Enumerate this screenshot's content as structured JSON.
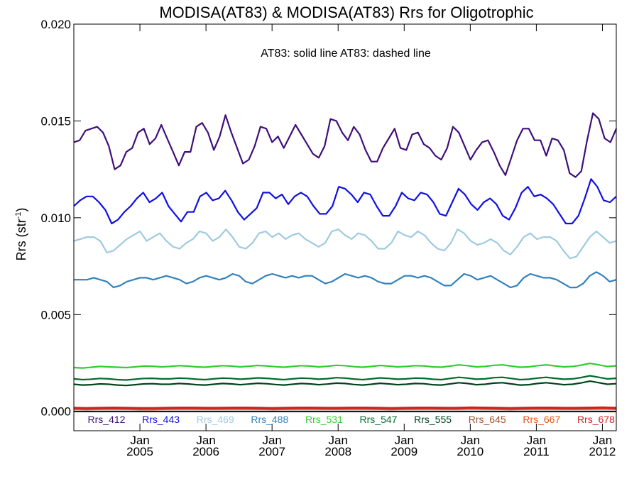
{
  "chart_data": {
    "type": "line",
    "title": "MODISA(AT83) & MODISA(AT83)  Rrs for Oligotrophic",
    "annotation": "AT83: solid line   AT83: dashed line",
    "ylabel_main": "Rrs (str",
    "ylabel_sup": "-1",
    "ylabel_close": ")",
    "xlabel": "",
    "ylim": [
      -0.001,
      0.02
    ],
    "xlim": [
      2004.0,
      2012.21
    ],
    "y_ticks": [
      0.0,
      0.005,
      0.01,
      0.015,
      0.02
    ],
    "y_tick_labels": [
      "0.000",
      "0.005",
      "0.010",
      "0.015",
      "0.020"
    ],
    "x_ticks": [
      2005.0,
      2006.0,
      2007.0,
      2008.0,
      2009.0,
      2010.0,
      2011.0,
      2012.0
    ],
    "x_tick_labels_top": [
      "Jan",
      "Jan",
      "Jan",
      "Jan",
      "Jan",
      "Jan",
      "Jan",
      "Jan"
    ],
    "x_tick_labels_bottom": [
      "2005",
      "2006",
      "2007",
      "2008",
      "2009",
      "2010",
      "2011",
      "2012"
    ],
    "grid": false,
    "legend_placement": "bottom",
    "series": [
      {
        "name": "Rrs_412",
        "color": "#3f0f7a",
        "values": [
          0.0139,
          0.014,
          0.0145,
          0.0146,
          0.0147,
          0.0144,
          0.0137,
          0.0125,
          0.0127,
          0.0134,
          0.0136,
          0.0144,
          0.0146,
          0.0138,
          0.0141,
          0.0148,
          0.0141,
          0.0134,
          0.0127,
          0.0134,
          0.0134,
          0.0147,
          0.0149,
          0.0144,
          0.0135,
          0.0142,
          0.0153,
          0.0144,
          0.0136,
          0.0128,
          0.013,
          0.0137,
          0.0147,
          0.0146,
          0.0139,
          0.0142,
          0.0136,
          0.0142,
          0.0148,
          0.0143,
          0.0138,
          0.0133,
          0.0131,
          0.0137,
          0.0151,
          0.015,
          0.0144,
          0.014,
          0.0147,
          0.0143,
          0.0135,
          0.0129,
          0.0129,
          0.0136,
          0.0141,
          0.0146,
          0.0136,
          0.0135,
          0.0143,
          0.0144,
          0.0138,
          0.0136,
          0.0132,
          0.013,
          0.0136,
          0.0147,
          0.0144,
          0.0137,
          0.013,
          0.0135,
          0.0139,
          0.014,
          0.0134,
          0.0127,
          0.0122,
          0.0131,
          0.014,
          0.0146,
          0.0146,
          0.014,
          0.014,
          0.0132,
          0.0141,
          0.014,
          0.0135,
          0.0123,
          0.0121,
          0.0124,
          0.014,
          0.0154,
          0.0151,
          0.0141,
          0.0139,
          0.0146
        ]
      },
      {
        "name": "Rrs_443",
        "color": "#1010e6",
        "values": [
          0.0106,
          0.0109,
          0.0111,
          0.0111,
          0.0108,
          0.0104,
          0.0097,
          0.0099,
          0.0103,
          0.0106,
          0.011,
          0.0113,
          0.0108,
          0.011,
          0.0113,
          0.0106,
          0.0102,
          0.0098,
          0.0103,
          0.0103,
          0.0111,
          0.0113,
          0.0109,
          0.011,
          0.0114,
          0.0109,
          0.0103,
          0.0099,
          0.0102,
          0.0105,
          0.0113,
          0.0113,
          0.011,
          0.0112,
          0.0107,
          0.0111,
          0.0113,
          0.0111,
          0.0106,
          0.0102,
          0.0102,
          0.0106,
          0.0116,
          0.0115,
          0.0112,
          0.0108,
          0.0113,
          0.0112,
          0.0106,
          0.0101,
          0.0101,
          0.0106,
          0.0113,
          0.011,
          0.0109,
          0.0113,
          0.0112,
          0.0108,
          0.0102,
          0.0101,
          0.0108,
          0.0115,
          0.0112,
          0.0107,
          0.0104,
          0.0108,
          0.011,
          0.0107,
          0.0101,
          0.0099,
          0.0105,
          0.0113,
          0.0116,
          0.0111,
          0.0112,
          0.011,
          0.0107,
          0.0102,
          0.0097,
          0.0097,
          0.0101,
          0.011,
          0.012,
          0.0116,
          0.0109,
          0.0108,
          0.0111
        ]
      },
      {
        "name": "Rrs_469",
        "color": "#9ecae1",
        "values": [
          0.0088,
          0.0089,
          0.009,
          0.009,
          0.0088,
          0.0082,
          0.0083,
          0.0086,
          0.0089,
          0.0091,
          0.0093,
          0.0088,
          0.009,
          0.0092,
          0.0088,
          0.0085,
          0.0084,
          0.0087,
          0.0089,
          0.0093,
          0.0092,
          0.0088,
          0.009,
          0.0094,
          0.009,
          0.0085,
          0.0084,
          0.0087,
          0.0092,
          0.0093,
          0.009,
          0.0092,
          0.0089,
          0.0091,
          0.0092,
          0.0089,
          0.0087,
          0.0085,
          0.0087,
          0.0093,
          0.0094,
          0.0091,
          0.0089,
          0.0092,
          0.0091,
          0.0088,
          0.0084,
          0.0084,
          0.0087,
          0.0093,
          0.0091,
          0.009,
          0.0093,
          0.0091,
          0.0087,
          0.0084,
          0.0083,
          0.0087,
          0.0094,
          0.0092,
          0.0088,
          0.0086,
          0.0087,
          0.0089,
          0.0087,
          0.0083,
          0.0081,
          0.0085,
          0.009,
          0.0092,
          0.0089,
          0.009,
          0.009,
          0.0088,
          0.0083,
          0.0079,
          0.008,
          0.0085,
          0.009,
          0.0093,
          0.009,
          0.0087,
          0.0088
        ]
      },
      {
        "name": "Rrs_488",
        "color": "#3182bd",
        "values": [
          0.0068,
          0.0068,
          0.0068,
          0.0069,
          0.0068,
          0.0067,
          0.0064,
          0.0065,
          0.0067,
          0.0068,
          0.0069,
          0.0069,
          0.0068,
          0.0069,
          0.007,
          0.0069,
          0.0068,
          0.0066,
          0.0067,
          0.0069,
          0.007,
          0.0069,
          0.0068,
          0.0069,
          0.0071,
          0.007,
          0.0067,
          0.0066,
          0.0068,
          0.007,
          0.0071,
          0.007,
          0.0069,
          0.007,
          0.0069,
          0.007,
          0.007,
          0.0068,
          0.0066,
          0.0067,
          0.0069,
          0.0071,
          0.007,
          0.0069,
          0.007,
          0.0069,
          0.0067,
          0.0066,
          0.0066,
          0.0068,
          0.007,
          0.007,
          0.0069,
          0.007,
          0.0069,
          0.0067,
          0.0065,
          0.0065,
          0.0068,
          0.0071,
          0.007,
          0.0068,
          0.0069,
          0.007,
          0.0068,
          0.0066,
          0.0064,
          0.0065,
          0.0069,
          0.0071,
          0.007,
          0.0069,
          0.0069,
          0.0068,
          0.0066,
          0.0064,
          0.0064,
          0.0066,
          0.007,
          0.0072,
          0.007,
          0.0067,
          0.0068
        ]
      },
      {
        "name": "Rrs_531",
        "color": "#33cc33",
        "values": [
          0.00226,
          0.00224,
          0.00228,
          0.00232,
          0.0023,
          0.00228,
          0.00226,
          0.0023,
          0.00234,
          0.00233,
          0.0023,
          0.00232,
          0.00236,
          0.00234,
          0.0023,
          0.00228,
          0.00232,
          0.00236,
          0.00234,
          0.0023,
          0.00233,
          0.00237,
          0.00235,
          0.00231,
          0.00228,
          0.00232,
          0.00236,
          0.00234,
          0.0023,
          0.00233,
          0.00238,
          0.00236,
          0.00231,
          0.00228,
          0.00232,
          0.00237,
          0.00234,
          0.0023,
          0.00232,
          0.00236,
          0.00235,
          0.0023,
          0.00228,
          0.00234,
          0.0024,
          0.00236,
          0.0023,
          0.00232,
          0.00238,
          0.0024,
          0.00234,
          0.00228,
          0.0023,
          0.00236,
          0.0024,
          0.00235,
          0.0023,
          0.00232,
          0.00239,
          0.00248,
          0.0024,
          0.00232,
          0.00235
        ]
      },
      {
        "name": "Rrs_547",
        "color": "#006d2c",
        "values": [
          0.00168,
          0.00164,
          0.00166,
          0.0017,
          0.00168,
          0.00164,
          0.00162,
          0.00166,
          0.0017,
          0.00171,
          0.00168,
          0.00168,
          0.00172,
          0.0017,
          0.00166,
          0.00164,
          0.00168,
          0.00172,
          0.0017,
          0.00166,
          0.00169,
          0.00173,
          0.00171,
          0.00167,
          0.00164,
          0.00168,
          0.00172,
          0.0017,
          0.00166,
          0.00169,
          0.00174,
          0.00172,
          0.00167,
          0.00164,
          0.00168,
          0.00173,
          0.0017,
          0.00166,
          0.00168,
          0.00172,
          0.00171,
          0.00166,
          0.00164,
          0.0017,
          0.00176,
          0.00172,
          0.00166,
          0.00168,
          0.00174,
          0.00176,
          0.0017,
          0.00164,
          0.00166,
          0.00172,
          0.00176,
          0.00171,
          0.00166,
          0.00168,
          0.00175,
          0.00184,
          0.00176,
          0.00168,
          0.00171
        ]
      },
      {
        "name": "Rrs_555",
        "color": "#00441b",
        "values": [
          0.0014,
          0.00136,
          0.00138,
          0.00142,
          0.0014,
          0.00136,
          0.00134,
          0.00138,
          0.00142,
          0.00143,
          0.0014,
          0.0014,
          0.00144,
          0.00142,
          0.00138,
          0.00136,
          0.0014,
          0.00144,
          0.00142,
          0.00138,
          0.00141,
          0.00145,
          0.00143,
          0.00139,
          0.00136,
          0.0014,
          0.00144,
          0.00142,
          0.00138,
          0.00141,
          0.00146,
          0.00144,
          0.00139,
          0.00136,
          0.0014,
          0.00145,
          0.00142,
          0.00138,
          0.0014,
          0.00144,
          0.00143,
          0.00138,
          0.00136,
          0.00142,
          0.00148,
          0.00144,
          0.00138,
          0.0014,
          0.00146,
          0.00148,
          0.00142,
          0.00136,
          0.00138,
          0.00144,
          0.00148,
          0.00143,
          0.00138,
          0.0014,
          0.00147,
          0.00156,
          0.00148,
          0.0014,
          0.00143
        ]
      },
      {
        "name": "Rrs_645",
        "color": "#a0522d",
        "values": [
          0.00016,
          0.00015,
          0.00016,
          0.00017,
          0.00016,
          0.00015,
          0.00015,
          0.00016,
          0.00017,
          0.00017,
          0.00016,
          0.00016,
          0.00017,
          0.00017,
          0.00016,
          0.00015,
          0.00016,
          0.00017,
          0.00017,
          0.00016,
          0.00016,
          0.00017,
          0.00017,
          0.00016,
          0.00015,
          0.00016,
          0.00017,
          0.00017,
          0.00016,
          0.00016,
          0.00018,
          0.00017,
          0.00016,
          0.00015,
          0.00016,
          0.00017,
          0.00017,
          0.00016,
          0.00016,
          0.00017,
          0.00018,
          0.00016
        ]
      },
      {
        "name": "Rrs_667",
        "color": "#e6550d",
        "values": [
          0.00012,
          0.00011,
          0.00012,
          0.00013,
          0.00012,
          0.00011,
          0.00011,
          0.00012,
          0.00013,
          0.00013,
          0.00012,
          0.00012,
          0.00013,
          0.00013,
          0.00012,
          0.00011,
          0.00012,
          0.00013,
          0.00013,
          0.00012,
          0.00012,
          0.00013,
          0.00013,
          0.00012,
          0.00011,
          0.00012,
          0.00013,
          0.00013,
          0.00012,
          0.00012,
          0.00014,
          0.00013,
          0.00012,
          0.00011,
          0.00012,
          0.00013,
          0.00013,
          0.00012,
          0.00012,
          0.00013,
          0.00014,
          0.00012
        ]
      },
      {
        "name": "Rrs_678",
        "color": "#cc2222",
        "values": [
          0.00018,
          0.00017,
          0.00018,
          0.00019,
          0.00018,
          0.00017,
          0.00017,
          0.00018,
          0.00019,
          0.00019,
          0.00018,
          0.00018,
          0.00019,
          0.00019,
          0.00018,
          0.00017,
          0.00018,
          0.00019,
          0.00019,
          0.00018,
          0.00018,
          0.00019,
          0.00019,
          0.00018,
          0.00017,
          0.00018,
          0.00019,
          0.00019,
          0.00018,
          0.00018,
          0.0002,
          0.00019,
          0.00018,
          0.00017,
          0.00018,
          0.00019,
          0.00019,
          0.00018,
          0.00018,
          0.00019,
          0.0002,
          0.00018
        ]
      }
    ],
    "zero_line": {
      "color": "#000000",
      "value": 0.0
    }
  }
}
